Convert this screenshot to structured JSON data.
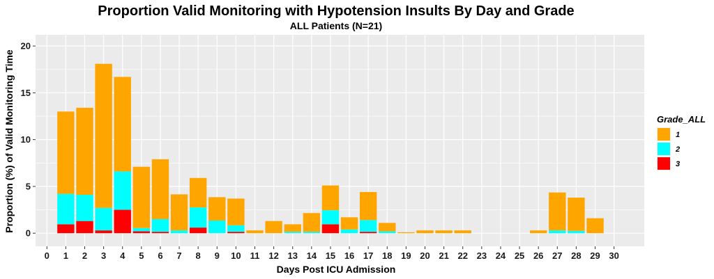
{
  "chart_data": {
    "type": "bar",
    "stacked": true,
    "title": "Proportion Valid Monitoring with Hypotension Insults By Day and Grade",
    "subtitle": "ALL Patients (N=21)",
    "xlabel": "Days Post ICU Admission",
    "ylabel": "Proportion (%) of Valid Monitoring Time",
    "ylim": [
      -1.4,
      21.2
    ],
    "xlim": [
      -0.6,
      31.6
    ],
    "y_ticks": [
      0,
      5,
      10,
      15,
      20
    ],
    "x_ticks": [
      0,
      1,
      2,
      3,
      4,
      5,
      6,
      7,
      8,
      9,
      10,
      11,
      12,
      13,
      14,
      15,
      16,
      17,
      18,
      19,
      20,
      21,
      22,
      23,
      24,
      25,
      26,
      27,
      28,
      29,
      30
    ],
    "grid": true,
    "legend_position": "right",
    "legend_title": "Grade_ALL",
    "x": [
      1,
      2,
      3,
      4,
      5,
      6,
      7,
      8,
      9,
      10,
      11,
      12,
      13,
      14,
      15,
      16,
      17,
      18,
      19,
      20,
      21,
      22,
      26,
      27,
      28,
      29
    ],
    "series": [
      {
        "name": "3",
        "color": "#FF0000",
        "values": [
          0.95,
          1.3,
          0.3,
          2.5,
          0.2,
          0.15,
          0,
          0.6,
          0,
          0.15,
          0,
          0,
          0,
          0,
          0.95,
          0,
          0.15,
          0,
          0,
          0,
          0,
          0,
          0,
          0,
          0,
          0
        ]
      },
      {
        "name": "2",
        "color": "#00FFFF",
        "values": [
          3.25,
          2.8,
          2.4,
          4.1,
          0.35,
          1.35,
          0.3,
          2.15,
          1.35,
          0.7,
          0,
          0,
          0.15,
          0.15,
          1.5,
          0.4,
          1.25,
          0.2,
          0,
          0,
          0,
          0,
          0,
          0.3,
          0.25,
          0
        ]
      },
      {
        "name": "1",
        "color": "#FFA500",
        "values": [
          8.8,
          9.3,
          15.4,
          10.1,
          6.55,
          6.4,
          3.85,
          3.15,
          2.5,
          2.85,
          0.3,
          1.3,
          0.8,
          2.0,
          2.65,
          1.3,
          3.0,
          0.9,
          0.1,
          0.3,
          0.3,
          0.3,
          0.3,
          4.05,
          3.55,
          1.6
        ]
      }
    ]
  }
}
